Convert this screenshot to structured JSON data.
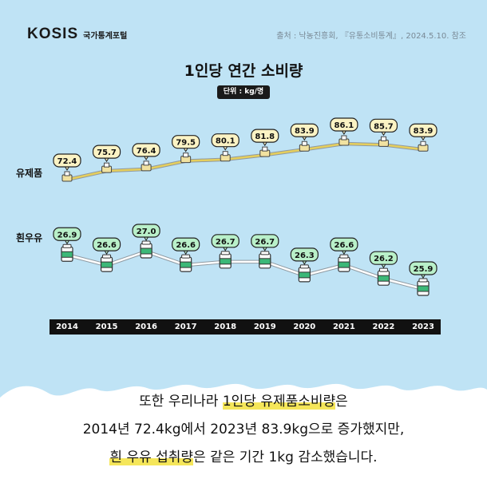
{
  "header": {
    "logo_text": "KOSIS",
    "logo_sub": "국가통계포털",
    "source": "출처 : 낙농진흥회, 『유통소비통계』, 2024.5.10. 참조"
  },
  "chart_data": {
    "type": "line",
    "title": "1인당 연간 소비량",
    "unit": "단위 : kg/명",
    "categories": [
      "2014",
      "2015",
      "2016",
      "2017",
      "2018",
      "2019",
      "2020",
      "2021",
      "2022",
      "2023"
    ],
    "series": [
      {
        "name": "유제품",
        "values": [
          72.4,
          75.7,
          76.4,
          79.5,
          80.1,
          81.8,
          83.9,
          86.1,
          85.7,
          83.9
        ],
        "labels": [
          "72.4",
          "75.7",
          "76.4",
          "79.5",
          "80.1",
          "81.8",
          "83.9",
          "86.1",
          "85.7",
          "83.9"
        ],
        "color": "#e8c94a"
      },
      {
        "name": "흰우유",
        "values": [
          26.9,
          26.6,
          27.0,
          26.6,
          26.7,
          26.7,
          26.3,
          26.6,
          26.2,
          25.9
        ],
        "labels": [
          "26.9",
          "26.6",
          "27.0",
          "26.6",
          "26.7",
          "26.7",
          "26.3",
          "26.6",
          "26.2",
          "25.9"
        ],
        "color": "#3cb878"
      }
    ],
    "legend": "left"
  },
  "caption": {
    "line1_pre": "또한 우리나라 ",
    "line1_hl": "1인당 유제품소비량",
    "line1_post": "은",
    "line2": "2014년 72.4kg에서 2023년 83.9kg으로 증가했지만,",
    "line3_hl": "흰 우유 섭취량",
    "line3_post": "은 같은 기간 1kg 감소했습니다."
  },
  "colors": {
    "background": "#bfe3f5",
    "panel": "#ffffff",
    "highlight": "#f5e65a"
  }
}
